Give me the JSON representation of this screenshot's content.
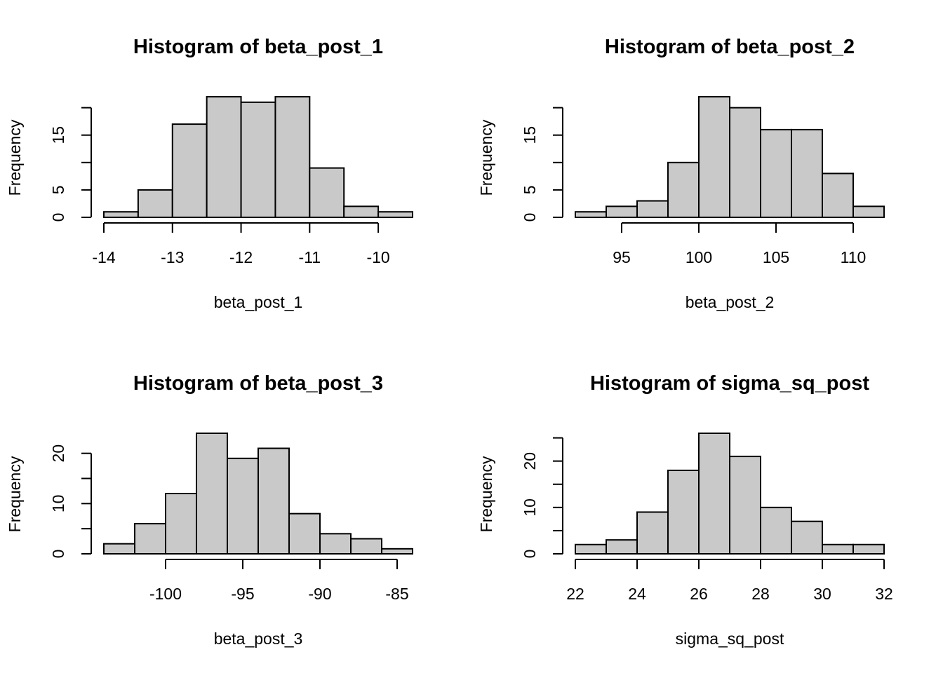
{
  "chart_data": [
    {
      "type": "bar",
      "title": "Histogram of beta_post_1",
      "xlabel": "beta_post_1",
      "ylabel": "Frequency",
      "bin_edges": [
        -14,
        -13.5,
        -13,
        -12.5,
        -12,
        -11.5,
        -11,
        -10.5,
        -10,
        -9.5
      ],
      "values": [
        1,
        5,
        17,
        22,
        21,
        22,
        9,
        2,
        1
      ],
      "xlim": [
        -14,
        -9.5
      ],
      "ylim": [
        0,
        22
      ],
      "x_ticks": [
        -14,
        -13,
        -12,
        -11,
        -10
      ],
      "x_tick_labels": [
        "-14",
        "-13",
        "-12",
        "-11",
        "-10"
      ],
      "y_ticks": [
        0,
        5,
        10,
        15,
        20
      ],
      "y_tick_labels": [
        "0",
        "5",
        "",
        "15",
        ""
      ]
    },
    {
      "type": "bar",
      "title": "Histogram of beta_post_2",
      "xlabel": "beta_post_2",
      "ylabel": "Frequency",
      "bin_edges": [
        92,
        94,
        96,
        98,
        100,
        102,
        104,
        106,
        108,
        110,
        112
      ],
      "values": [
        1,
        2,
        3,
        10,
        22,
        20,
        16,
        16,
        8,
        2
      ],
      "xlim": [
        92,
        112
      ],
      "ylim": [
        0,
        22
      ],
      "x_ticks": [
        95,
        100,
        105,
        110
      ],
      "x_tick_labels": [
        "95",
        "100",
        "105",
        "110"
      ],
      "y_ticks": [
        0,
        5,
        10,
        15,
        20
      ],
      "y_tick_labels": [
        "0",
        "5",
        "",
        "15",
        ""
      ]
    },
    {
      "type": "bar",
      "title": "Histogram of beta_post_3",
      "xlabel": "beta_post_3",
      "ylabel": "Frequency",
      "bin_edges": [
        -104,
        -102,
        -100,
        -98,
        -96,
        -94,
        -92,
        -90,
        -88,
        -86,
        -84
      ],
      "values": [
        2,
        6,
        12,
        24,
        19,
        21,
        8,
        4,
        3,
        1
      ],
      "xlim": [
        -104,
        -84
      ],
      "ylim": [
        0,
        24
      ],
      "x_ticks": [
        -100,
        -95,
        -90,
        -85
      ],
      "x_tick_labels": [
        "-100",
        "-95",
        "-90",
        "-85"
      ],
      "y_ticks": [
        0,
        5,
        10,
        15,
        20
      ],
      "y_tick_labels": [
        "0",
        "",
        "10",
        "",
        "20"
      ]
    },
    {
      "type": "bar",
      "title": "Histogram of sigma_sq_post",
      "xlabel": "sigma_sq_post",
      "ylabel": "Frequency",
      "bin_edges": [
        22,
        23,
        24,
        25,
        26,
        27,
        28,
        29,
        30,
        31,
        32
      ],
      "values": [
        2,
        3,
        9,
        18,
        26,
        21,
        10,
        7,
        2,
        2
      ],
      "xlim": [
        22,
        32
      ],
      "ylim": [
        0,
        26
      ],
      "x_ticks": [
        22,
        24,
        26,
        28,
        30,
        32
      ],
      "x_tick_labels": [
        "22",
        "24",
        "26",
        "28",
        "30",
        "32"
      ],
      "y_ticks": [
        0,
        5,
        10,
        15,
        20,
        25
      ],
      "y_tick_labels": [
        "0",
        "",
        "10",
        "",
        "20",
        ""
      ]
    }
  ]
}
